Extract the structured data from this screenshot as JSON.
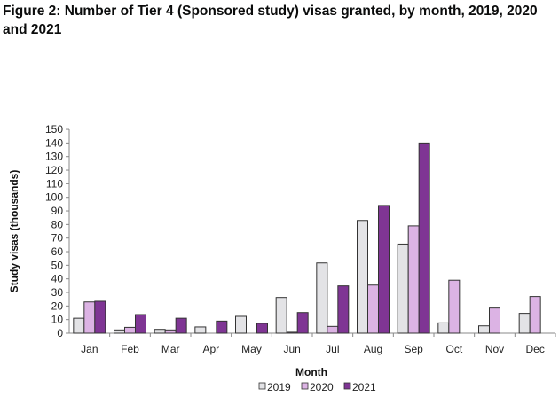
{
  "chart_data": {
    "type": "bar",
    "title": "Figure 2: Number of Tier 4 (Sponsored study) visas granted, by month, 2019, 2020 and 2021",
    "xlabel": "Month",
    "ylabel": "Study visas (thousands)",
    "ylim": [
      0,
      150
    ],
    "yticks": [
      0,
      10,
      20,
      30,
      40,
      50,
      60,
      70,
      80,
      90,
      100,
      110,
      120,
      130,
      140,
      150
    ],
    "grid": false,
    "legend_position": "bottom",
    "categories": [
      "Jan",
      "Feb",
      "Mar",
      "Apr",
      "May",
      "Jun",
      "Jul",
      "Aug",
      "Sep",
      "Oct",
      "Nov",
      "Dec"
    ],
    "series": [
      {
        "name": "2019",
        "color": "#e3e3e6",
        "values": [
          11,
          2.4,
          2.8,
          4.6,
          12.4,
          26.3,
          51.7,
          83,
          65.6,
          7.6,
          5.4,
          14.6
        ]
      },
      {
        "name": "2020",
        "color": "#dcb3e4",
        "values": [
          23,
          4.3,
          2.4,
          null,
          null,
          0.7,
          5,
          35.4,
          79,
          39,
          18.5,
          27
        ]
      },
      {
        "name": "2021",
        "color": "#7f3594",
        "values": [
          23.5,
          13.7,
          11,
          8.9,
          7.2,
          15.2,
          34.8,
          94,
          140,
          null,
          null,
          null
        ]
      }
    ]
  }
}
